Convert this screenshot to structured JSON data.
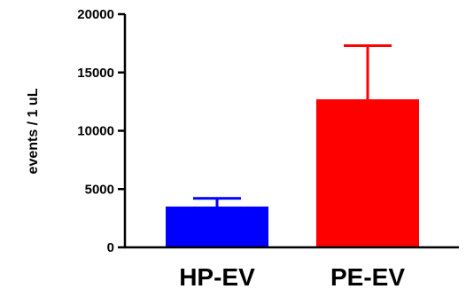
{
  "chart_data": {
    "type": "bar",
    "title": "",
    "xlabel": "",
    "ylabel": "events / 1 uL",
    "categories": [
      "HP-EV",
      "PE-EV"
    ],
    "values": [
      3500,
      12700
    ],
    "error_upper": [
      4200,
      17300
    ],
    "ylim": [
      0,
      20000
    ],
    "yticks": [
      0,
      5000,
      10000,
      15000,
      20000
    ],
    "ytick_labels": [
      "0",
      "5000",
      "10000",
      "15000",
      "20000"
    ],
    "colors": [
      "#0000ff",
      "#ff0000"
    ],
    "grid": false,
    "legend": "none"
  }
}
